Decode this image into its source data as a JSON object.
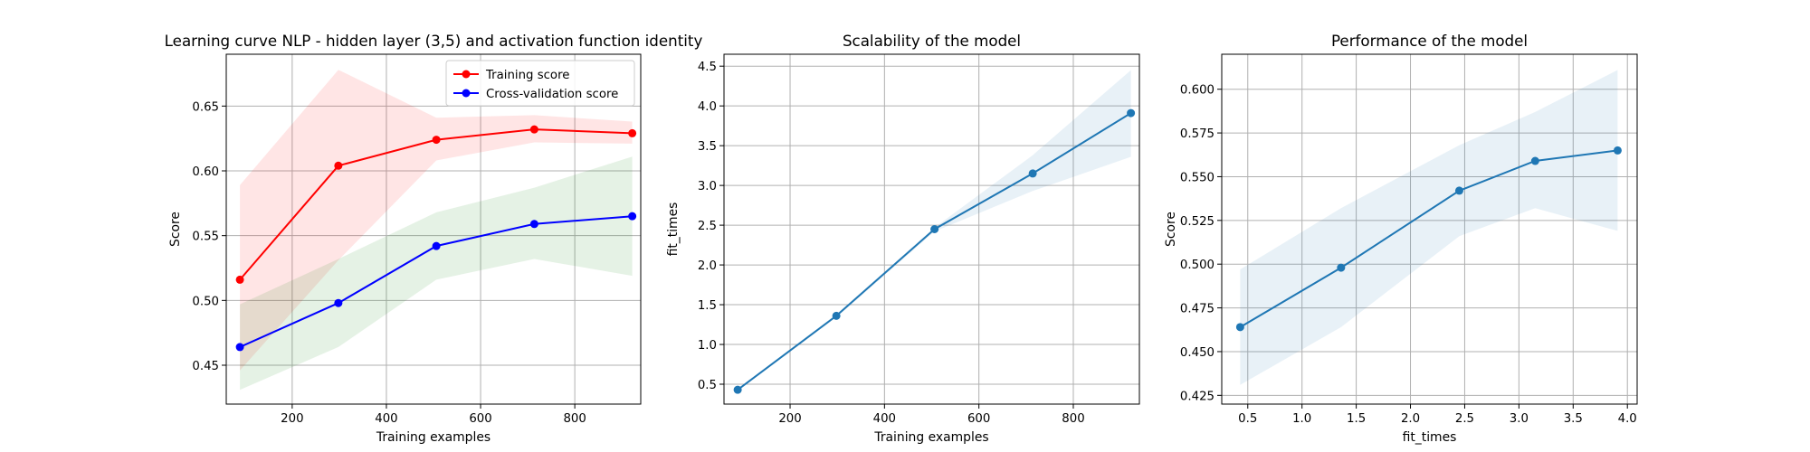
{
  "chart_data": [
    {
      "type": "line",
      "title": "Learning curve NLP - hidden layer (3,5) and activation function identity",
      "xlabel": "Training examples",
      "ylabel": "Score",
      "xlim": [
        60,
        940
      ],
      "ylim": [
        0.42,
        0.69
      ],
      "xticks": [
        200,
        400,
        600,
        800
      ],
      "yticks": [
        0.45,
        0.5,
        0.55,
        0.6,
        0.65
      ],
      "grid": true,
      "legend": "top-right",
      "x": [
        89,
        298,
        506,
        714,
        922
      ],
      "series": [
        {
          "name": "Training score",
          "color": "#ff0000",
          "band_color": "#ff0000",
          "values": [
            0.516,
            0.604,
            0.624,
            0.632,
            0.629
          ],
          "upper": [
            0.589,
            0.678,
            0.641,
            0.643,
            0.638
          ],
          "lower": [
            0.446,
            0.531,
            0.608,
            0.622,
            0.621
          ]
        },
        {
          "name": "Cross-validation score",
          "color": "#0000ff",
          "band_color": "#008000",
          "values": [
            0.464,
            0.498,
            0.542,
            0.559,
            0.565
          ],
          "upper": [
            0.497,
            0.532,
            0.568,
            0.587,
            0.611
          ],
          "lower": [
            0.431,
            0.464,
            0.516,
            0.532,
            0.519
          ]
        }
      ]
    },
    {
      "type": "line",
      "title": "Scalability of the model",
      "xlabel": "Training examples",
      "ylabel": "fit_times",
      "xlim": [
        60,
        940
      ],
      "ylim": [
        0.25,
        4.65
      ],
      "xticks": [
        200,
        400,
        600,
        800
      ],
      "yticks": [
        0.5,
        1.0,
        1.5,
        2.0,
        2.5,
        3.0,
        3.5,
        4.0,
        4.5
      ],
      "grid": true,
      "x": [
        89,
        298,
        506,
        714,
        922
      ],
      "series": [
        {
          "color": "#1f77b4",
          "band_color": "#1f77b4",
          "values": [
            0.43,
            1.36,
            2.45,
            3.15,
            3.91
          ],
          "upper": [
            0.44,
            1.38,
            2.47,
            3.38,
            4.45
          ],
          "lower": [
            0.42,
            1.34,
            2.42,
            2.93,
            3.36
          ]
        }
      ]
    },
    {
      "type": "line",
      "title": "Performance of the model",
      "xlabel": "fit_times",
      "ylabel": "Score",
      "xlim": [
        0.26,
        4.09
      ],
      "ylim": [
        0.42,
        0.62
      ],
      "xticks": [
        0.5,
        1.0,
        1.5,
        2.0,
        2.5,
        3.0,
        3.5,
        4.0
      ],
      "yticks": [
        0.425,
        0.45,
        0.475,
        0.5,
        0.525,
        0.55,
        0.575,
        0.6
      ],
      "grid": true,
      "x": [
        0.43,
        1.36,
        2.45,
        3.15,
        3.91
      ],
      "series": [
        {
          "color": "#1f77b4",
          "band_color": "#1f77b4",
          "values": [
            0.464,
            0.498,
            0.542,
            0.559,
            0.565
          ],
          "upper": [
            0.497,
            0.532,
            0.568,
            0.587,
            0.611
          ],
          "lower": [
            0.431,
            0.464,
            0.516,
            0.532,
            0.519
          ]
        }
      ]
    }
  ]
}
